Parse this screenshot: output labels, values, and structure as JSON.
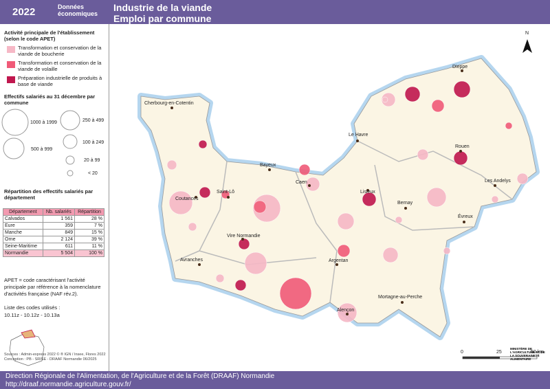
{
  "header": {
    "year": "2022",
    "org": "Données économiques",
    "title": "Industrie de la viande",
    "subtitle": "Emploi par commune"
  },
  "legend": {
    "heading": "Activité principale de l'établissement (selon le code APET)",
    "items": [
      "Transformation et conservation de la viande de boucherie",
      "Transformation et conservation de la viande de volaille",
      "Préparation industrielle de produits à base de viande"
    ]
  },
  "size_legend": {
    "heading": "Effectifs salariés au 31 décembre par commune",
    "classes": [
      "1000 à 1999",
      "250 à 499",
      "500 à 999",
      "100 à 249",
      "20 à 99",
      "< 20"
    ]
  },
  "table": {
    "title": "Répartition des effectifs salariés par département",
    "columns": [
      "Département",
      "Nb. salariés",
      "Répartition"
    ],
    "rows": [
      [
        "Calvados",
        "1 561",
        "28 %"
      ],
      [
        "Eure",
        "359",
        "7 %"
      ],
      [
        "Manche",
        "849",
        "15 %"
      ],
      [
        "Orne",
        "2 124",
        "39 %"
      ],
      [
        "Seine-Maritime",
        "611",
        "11 %"
      ],
      [
        "Normandie",
        "5 504",
        "100 %"
      ]
    ]
  },
  "notes": [
    "APET = code caractérisant l'activité principale par référence à la nomenclature d'activités française (NAF rév.2).",
    "Liste des codes utilisés :",
    "10.11z - 10.12z - 10.13a"
  ],
  "sources": [
    "Sources : Admin-express 2022 © ® IGN / Insee, Flores 2022",
    "Conception : PB - SRISE - DRAAF Normandie 06/2025"
  ],
  "cities": [
    "Dieppe",
    "Cherbourg-en-Cotentin",
    "Le Havre",
    "Rouen",
    "Bayeux",
    "Caen",
    "Lisieux",
    "Les Andelys",
    "Saint-Lô",
    "Coutances",
    "Bernay",
    "Évreux",
    "Vire Normandie",
    "Avranches",
    "Argentan",
    "Mortagne-au-Perche",
    "Alençon"
  ],
  "north": "N",
  "scale": [
    "0",
    "25",
    "50 km"
  ],
  "ministry": "MINISTÈRE DE L'AGRICULTURE ET DE LA SOUVERAINETÉ ALIMENTAIRE",
  "footer": {
    "org": "Direction Régionale de l'Alimentation, de l'Agriculture et de la Forêt (DRAAF) Normandie",
    "url": "http://draaf.normandie.agriculture.gouv.fr/"
  }
}
